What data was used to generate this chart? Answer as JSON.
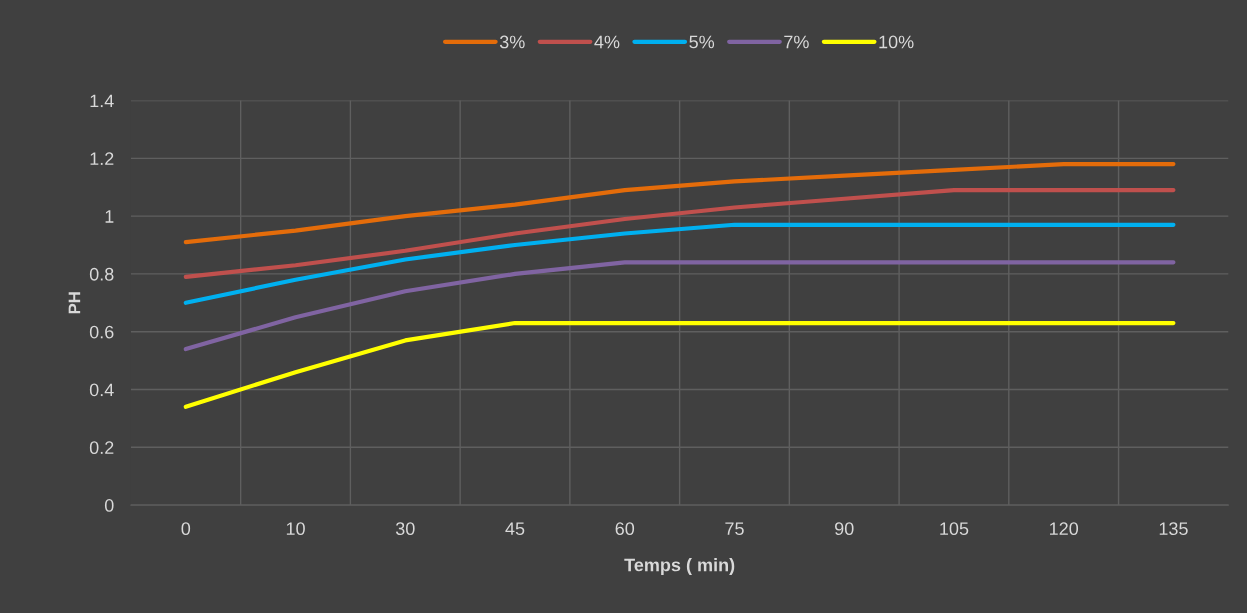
{
  "chart_data": {
    "type": "line",
    "xlabel": "Temps ( min)",
    "ylabel": "PH",
    "categories": [
      "0",
      "10",
      "30",
      "45",
      "60",
      "75",
      "90",
      "105",
      "120",
      "135"
    ],
    "series": [
      {
        "name": "3%",
        "color": "#e46c0a",
        "values": [
          0.91,
          0.95,
          1.0,
          1.04,
          1.09,
          1.12,
          1.14,
          1.16,
          1.18,
          1.18
        ]
      },
      {
        "name": "4%",
        "color": "#c0504d",
        "values": [
          0.79,
          0.83,
          0.88,
          0.94,
          0.99,
          1.03,
          1.06,
          1.09,
          1.09,
          1.09
        ]
      },
      {
        "name": "5%",
        "color": "#00b0f0",
        "values": [
          0.7,
          0.78,
          0.85,
          0.9,
          0.94,
          0.97,
          0.97,
          0.97,
          0.97,
          0.97
        ]
      },
      {
        "name": "7%",
        "color": "#8064a2",
        "values": [
          0.54,
          0.65,
          0.74,
          0.8,
          0.84,
          0.84,
          0.84,
          0.84,
          0.84,
          0.84
        ]
      },
      {
        "name": "10%",
        "color": "#ffff00",
        "values": [
          0.34,
          0.46,
          0.57,
          0.63,
          0.63,
          0.63,
          0.63,
          0.63,
          0.63,
          0.63
        ]
      }
    ],
    "ylim": [
      0,
      1.4
    ],
    "yticks": [
      0,
      0.2,
      0.4,
      0.6,
      0.8,
      1,
      1.2,
      1.4
    ],
    "grid": true,
    "legend": "top",
    "marker": "none",
    "line_style": "solid"
  }
}
